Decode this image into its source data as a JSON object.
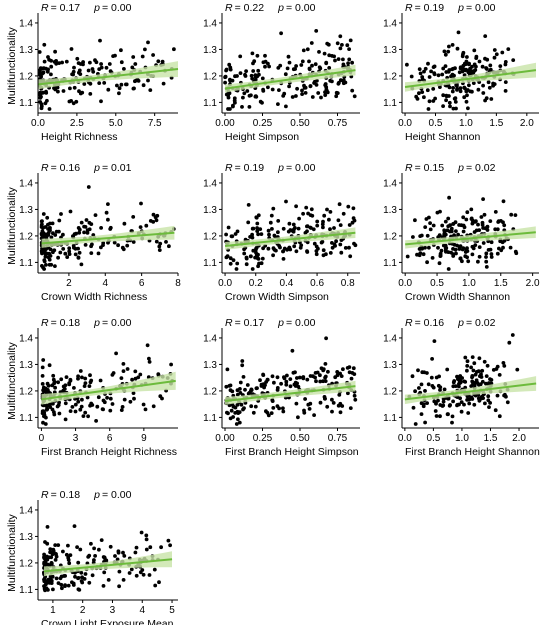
{
  "chart_data": [
    {
      "type": "scatter",
      "id": "height-richness",
      "xlabel": "Height Richness",
      "ylabel": "Multifunctionality",
      "stats": {
        "r_label": "R",
        "r_value": "= 0.17",
        "p_label": "p",
        "p_value": "= 0.00"
      },
      "xlim": [
        0,
        9
      ],
      "ylim": [
        1.06,
        1.43
      ],
      "xticks": [
        0,
        2.5,
        5,
        7.5
      ],
      "xtick_labels": [
        "0.0",
        "2.5",
        "5.0",
        "7.5"
      ],
      "yticks": [
        1.1,
        1.2,
        1.3,
        1.4
      ],
      "ytick_labels": [
        "1.1",
        "1.2",
        "1.3",
        "1.4"
      ],
      "fit": {
        "x": [
          0,
          9
        ],
        "y": [
          1.168,
          1.226
        ],
        "ci": [
          0.012,
          0.03
        ]
      },
      "points": {
        "count": 190,
        "seed": 11,
        "x_dist": "skew",
        "x_min": 0.1,
        "x_max": 8.8,
        "spread": 0.072
      }
    },
    {
      "type": "scatter",
      "id": "height-simpson",
      "xlabel": "Height Simpson",
      "ylabel": "",
      "stats": {
        "r_label": "R",
        "r_value": "= 0.22",
        "p_label": "p",
        "p_value": "= 0.00"
      },
      "xlim": [
        -0.02,
        0.9
      ],
      "ylim": [
        1.06,
        1.43
      ],
      "xticks": [
        0,
        0.25,
        0.5,
        0.75
      ],
      "xtick_labels": [
        "0.00",
        "0.25",
        "0.50",
        "0.75"
      ],
      "yticks": [
        1.1,
        1.2,
        1.3,
        1.4
      ],
      "ytick_labels": [
        "1.1",
        "1.2",
        "1.3",
        "1.4"
      ],
      "fit": {
        "x": [
          0,
          0.87
        ],
        "y": [
          1.152,
          1.222
        ],
        "ci": [
          0.012,
          0.02
        ]
      },
      "points": {
        "count": 210,
        "seed": 23,
        "x_dist": "uniform",
        "x_min": 0.0,
        "x_max": 0.87,
        "spread": 0.072
      }
    },
    {
      "type": "scatter",
      "id": "height-shannon",
      "xlabel": "Height Shannon",
      "ylabel": "",
      "stats": {
        "r_label": "R",
        "r_value": "= 0.19",
        "p_label": "p",
        "p_value": "= 0.00"
      },
      "xlim": [
        -0.05,
        2.2
      ],
      "ylim": [
        1.06,
        1.43
      ],
      "xticks": [
        0,
        0.5,
        1.0,
        1.5,
        2.0
      ],
      "xtick_labels": [
        "0.0",
        "0.5",
        "1.0",
        "1.5",
        "2.0"
      ],
      "yticks": [
        1.1,
        1.2,
        1.3,
        1.4
      ],
      "ytick_labels": [
        "1.1",
        "1.2",
        "1.3",
        "1.4"
      ],
      "fit": {
        "x": [
          0,
          2.15
        ],
        "y": [
          1.158,
          1.222
        ],
        "ci": [
          0.012,
          0.028
        ]
      },
      "points": {
        "count": 200,
        "seed": 37,
        "x_dist": "mid",
        "x_min": 0.0,
        "x_max": 2.1,
        "spread": 0.072
      }
    },
    {
      "type": "scatter",
      "id": "crown-width-richness",
      "xlabel": "Crown Width Richness",
      "ylabel": "Multifunctionality",
      "stats": {
        "r_label": "R",
        "r_value": "= 0.16",
        "p_label": "p",
        "p_value": "= 0.01"
      },
      "xlim": [
        0.3,
        8
      ],
      "ylim": [
        1.06,
        1.43
      ],
      "xticks": [
        2,
        4,
        6,
        8
      ],
      "xtick_labels": [
        "2",
        "4",
        "6",
        "8"
      ],
      "yticks": [
        1.1,
        1.2,
        1.3,
        1.4
      ],
      "ytick_labels": [
        "1.1",
        "1.2",
        "1.3",
        "1.4"
      ],
      "fit": {
        "x": [
          0.5,
          7.8
        ],
        "y": [
          1.172,
          1.212
        ],
        "ci": [
          0.012,
          0.026
        ]
      },
      "points": {
        "count": 200,
        "seed": 41,
        "x_dist": "skew",
        "x_min": 0.5,
        "x_max": 7.8,
        "spread": 0.07
      }
    },
    {
      "type": "scatter",
      "id": "crown-width-simpson",
      "xlabel": "Crown Width Simpson",
      "ylabel": "",
      "stats": {
        "r_label": "R",
        "r_value": "= 0.19",
        "p_label": "p",
        "p_value": "= 0.00"
      },
      "xlim": [
        -0.02,
        0.88
      ],
      "ylim": [
        1.06,
        1.43
      ],
      "xticks": [
        0,
        0.2,
        0.4,
        0.6,
        0.8
      ],
      "xtick_labels": [
        "0.0",
        "0.2",
        "0.4",
        "0.6",
        "0.8"
      ],
      "yticks": [
        1.1,
        1.2,
        1.3,
        1.4
      ],
      "ytick_labels": [
        "1.1",
        "1.2",
        "1.3",
        "1.4"
      ],
      "fit": {
        "x": [
          0,
          0.85
        ],
        "y": [
          1.162,
          1.212
        ],
        "ci": [
          0.012,
          0.02
        ]
      },
      "points": {
        "count": 210,
        "seed": 53,
        "x_dist": "uniform",
        "x_min": 0.0,
        "x_max": 0.85,
        "spread": 0.07
      }
    },
    {
      "type": "scatter",
      "id": "crown-width-shannon",
      "xlabel": "Crown Width Shannon",
      "ylabel": "",
      "stats": {
        "r_label": "R",
        "r_value": "= 0.15",
        "p_label": "p",
        "p_value": "= 0.02"
      },
      "xlim": [
        -0.05,
        2.1
      ],
      "ylim": [
        1.06,
        1.43
      ],
      "xticks": [
        0,
        0.5,
        1.0,
        1.5,
        2.0
      ],
      "xtick_labels": [
        "0.0",
        "0.5",
        "1.0",
        "1.5",
        "2.0"
      ],
      "yticks": [
        1.1,
        1.2,
        1.3,
        1.4
      ],
      "ytick_labels": [
        "1.1",
        "1.2",
        "1.3",
        "1.4"
      ],
      "fit": {
        "x": [
          0,
          2.05
        ],
        "y": [
          1.168,
          1.214
        ],
        "ci": [
          0.012,
          0.022
        ]
      },
      "points": {
        "count": 200,
        "seed": 67,
        "x_dist": "mid",
        "x_min": 0.0,
        "x_max": 2.0,
        "spread": 0.07
      }
    },
    {
      "type": "scatter",
      "id": "first-branch-height-richness",
      "xlabel": "First Branch Height Richness",
      "ylabel": "Multifunctionality",
      "stats": {
        "r_label": "R",
        "r_value": "= 0.18",
        "p_label": "p",
        "p_value": "= 0.00"
      },
      "xlim": [
        -0.3,
        12
      ],
      "ylim": [
        1.06,
        1.43
      ],
      "xticks": [
        0,
        3,
        6,
        9
      ],
      "xtick_labels": [
        "0",
        "3",
        "6",
        "9"
      ],
      "yticks": [
        1.1,
        1.2,
        1.3,
        1.4
      ],
      "ytick_labels": [
        "1.1",
        "1.2",
        "1.3",
        "1.4"
      ],
      "fit": {
        "x": [
          0,
          11.8
        ],
        "y": [
          1.168,
          1.238
        ],
        "ci": [
          0.012,
          0.034
        ]
      },
      "points": {
        "count": 190,
        "seed": 79,
        "x_dist": "skew",
        "x_min": 0.1,
        "x_max": 11.5,
        "spread": 0.072
      }
    },
    {
      "type": "scatter",
      "id": "first-branch-height-simpson",
      "xlabel": "First Branch Height Simpson",
      "ylabel": "",
      "stats": {
        "r_label": "R",
        "r_value": "= 0.17",
        "p_label": "p",
        "p_value": "= 0.00"
      },
      "xlim": [
        -0.02,
        0.9
      ],
      "ylim": [
        1.06,
        1.43
      ],
      "xticks": [
        0,
        0.25,
        0.5,
        0.75
      ],
      "xtick_labels": [
        "0.00",
        "0.25",
        "0.50",
        "0.75"
      ],
      "yticks": [
        1.1,
        1.2,
        1.3,
        1.4
      ],
      "ytick_labels": [
        "1.1",
        "1.2",
        "1.3",
        "1.4"
      ],
      "fit": {
        "x": [
          0,
          0.87
        ],
        "y": [
          1.162,
          1.218
        ],
        "ci": [
          0.012,
          0.02
        ]
      },
      "points": {
        "count": 210,
        "seed": 83,
        "x_dist": "uniform",
        "x_min": 0.0,
        "x_max": 0.87,
        "spread": 0.07
      }
    },
    {
      "type": "scatter",
      "id": "first-branch-height-shannon",
      "xlabel": "First Branch Height Shannon",
      "ylabel": "",
      "stats": {
        "r_label": "R",
        "r_value": "= 0.16",
        "p_label": "p",
        "p_value": "= 0.02"
      },
      "xlim": [
        -0.05,
        2.35
      ],
      "ylim": [
        1.06,
        1.43
      ],
      "xticks": [
        0,
        0.5,
        1.0,
        1.5,
        2.0
      ],
      "xtick_labels": [
        "0.0",
        "0.5",
        "1.0",
        "1.5",
        "2.0"
      ],
      "yticks": [
        1.1,
        1.2,
        1.3,
        1.4
      ],
      "ytick_labels": [
        "1.1",
        "1.2",
        "1.3",
        "1.4"
      ],
      "fit": {
        "x": [
          0,
          2.3
        ],
        "y": [
          1.168,
          1.228
        ],
        "ci": [
          0.012,
          0.028
        ]
      },
      "points": {
        "count": 200,
        "seed": 97,
        "x_dist": "mid",
        "x_min": 0.0,
        "x_max": 2.25,
        "spread": 0.07
      }
    },
    {
      "type": "scatter",
      "id": "crown-light-exposure-mean",
      "xlabel": "Crown Light Exposure Mean",
      "ylabel": "Multifunctionality",
      "stats": {
        "r_label": "R",
        "r_value": "= 0.18",
        "p_label": "p",
        "p_value": "= 0.00"
      },
      "xlim": [
        0.5,
        5.2
      ],
      "ylim": [
        1.06,
        1.43
      ],
      "xticks": [
        1,
        2,
        3,
        4,
        5
      ],
      "xtick_labels": [
        "1",
        "2",
        "3",
        "4",
        "5"
      ],
      "yticks": [
        1.1,
        1.2,
        1.3,
        1.4
      ],
      "ytick_labels": [
        "1.1",
        "1.2",
        "1.3",
        "1.4"
      ],
      "fit": {
        "x": [
          0.7,
          5.0
        ],
        "y": [
          1.168,
          1.214
        ],
        "ci": [
          0.012,
          0.03
        ]
      },
      "points": {
        "count": 200,
        "seed": 101,
        "x_dist": "skew",
        "x_min": 0.7,
        "x_max": 5.0,
        "spread": 0.07
      }
    }
  ]
}
